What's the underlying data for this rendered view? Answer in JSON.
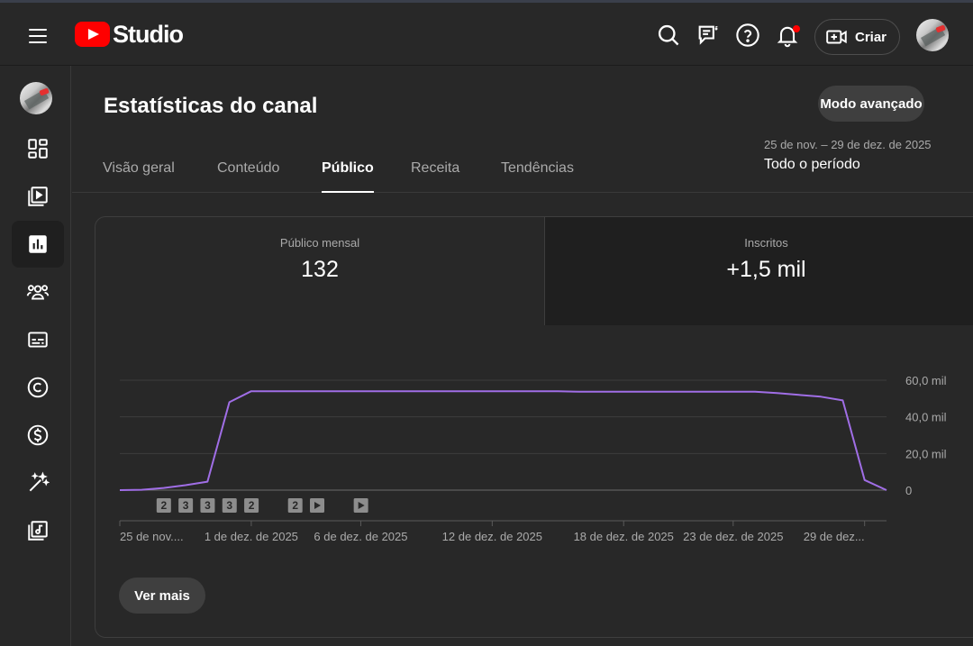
{
  "app": {
    "logo_text": "Studio"
  },
  "header": {
    "create_label": "Criar"
  },
  "page": {
    "title": "Estatísticas do canal",
    "advanced_mode": "Modo avançado",
    "tabs": [
      "Visão geral",
      "Conteúdo",
      "Público",
      "Receita",
      "Tendências"
    ],
    "active_tab": "Público",
    "date_range": {
      "range": "25 de nov. – 29 de dez. de 2025",
      "period": "Todo o período"
    }
  },
  "metrics": [
    {
      "label": "Público mensal",
      "value": "132"
    },
    {
      "label": "Inscritos",
      "value": "+1,5 mil"
    }
  ],
  "see_more": "Ver mais",
  "colors": {
    "line": "#a06ee6",
    "accent_red": "#ff0000"
  },
  "chart_data": {
    "type": "line",
    "y_ticks": [
      "0",
      "20,0 mil",
      "40,0 mil",
      "60,0 mil"
    ],
    "ylim": [
      0,
      60000
    ],
    "x_tick_labels": [
      "25 de nov....",
      "1 de dez. de 2025",
      "6 de dez. de 2025",
      "12 de dez. de 2025",
      "18 de dez. de 2025",
      "23 de dez. de 2025",
      "29 de dez..."
    ],
    "x_tick_days": [
      0,
      6,
      11,
      17,
      23,
      28,
      34
    ],
    "series": [
      {
        "values": [
          0,
          200,
          1200,
          2700,
          4600,
          48000,
          54000,
          54000,
          54000,
          54000,
          54000,
          54000,
          54000,
          54000,
          54000,
          54000,
          54000,
          54000,
          54000,
          54000,
          54000,
          53700,
          53700,
          53700,
          53700,
          53700,
          53700,
          53700,
          53700,
          53700,
          53000,
          52000,
          51000,
          49000,
          5500,
          0
        ]
      }
    ],
    "markers": [
      {
        "day": 1,
        "label": "2"
      },
      {
        "day": 2,
        "label": "3"
      },
      {
        "day": 3,
        "label": "3"
      },
      {
        "day": 4,
        "label": "3"
      },
      {
        "day": 5,
        "label": "2"
      },
      {
        "day": 7,
        "label": "2"
      },
      {
        "day": 8,
        "label": "play"
      },
      {
        "day": 10,
        "label": "play"
      }
    ]
  }
}
